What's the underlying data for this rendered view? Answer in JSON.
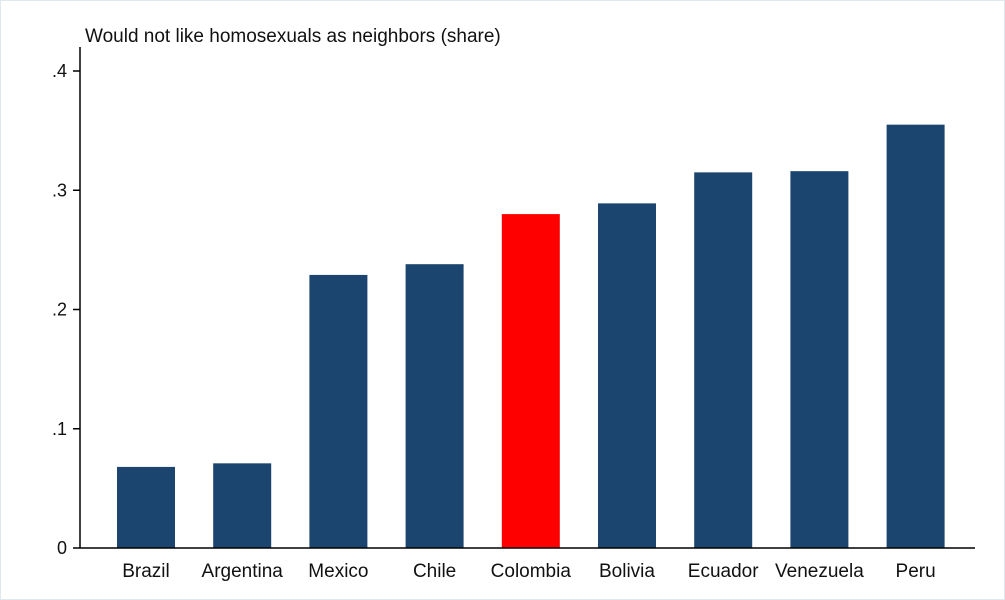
{
  "chart_data": {
    "type": "bar",
    "title": "Would not like homosexuals as neighbors (share)",
    "categories": [
      "Brazil",
      "Argentina",
      "Mexico",
      "Chile",
      "Colombia",
      "Bolivia",
      "Ecuador",
      "Venezuela",
      "Peru"
    ],
    "values": [
      0.068,
      0.071,
      0.229,
      0.238,
      0.28,
      0.289,
      0.315,
      0.316,
      0.355
    ],
    "highlight": "Colombia",
    "ylim": [
      0,
      0.4
    ],
    "yticks": [
      0,
      0.1,
      0.2,
      0.3,
      0.4
    ],
    "ytick_labels": [
      "0",
      ".1",
      ".2",
      ".3",
      ".4"
    ],
    "grid": false,
    "colors": {
      "bar": "#1b456e",
      "highlight": "#ff0000",
      "axis": "#000000"
    }
  }
}
